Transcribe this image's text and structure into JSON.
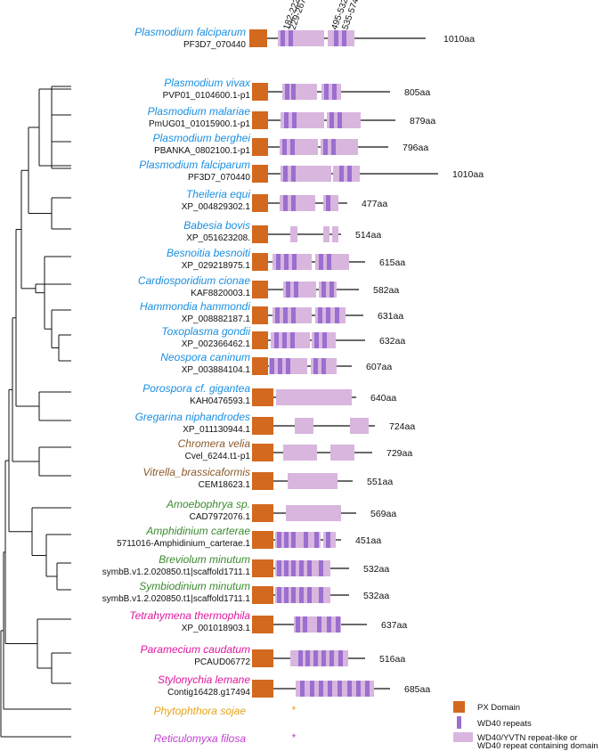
{
  "figure": {
    "reference": {
      "species": "Plasmodium falciparum",
      "accession": "PF3D7_070440",
      "length": "1010aa",
      "color": "#1a8fe0",
      "range_labels": [
        "182-222",
        "229-267",
        "495-532",
        "535-574"
      ]
    },
    "proteins": [
      {
        "species": "Plasmodium vivax",
        "accession": "PVP01_0104600.1-p1",
        "length": "805aa",
        "group": "apicomplexa",
        "aa": 805
      },
      {
        "species": "Plasmodium malariae",
        "accession": "PmUG01_01015900.1-p1",
        "length": "879aa",
        "group": "apicomplexa",
        "aa": 879
      },
      {
        "species": "Plasmodium berghei",
        "accession": "PBANKA_0802100.1-p1",
        "length": "796aa",
        "group": "apicomplexa",
        "aa": 796
      },
      {
        "species": "Plasmodium falciparum",
        "accession": "PF3D7_070440",
        "length": "1010aa",
        "group": "apicomplexa",
        "aa": 1010
      },
      {
        "species": "Theileria equi",
        "accession": "XP_004829302.1",
        "length": "477aa",
        "group": "apicomplexa",
        "aa": 477
      },
      {
        "species": "Babesia bovis",
        "accession": "XP_051623208.",
        "length": "514aa",
        "group": "apicomplexa",
        "aa": 514
      },
      {
        "species": "Besnoitia besnoiti",
        "accession": "XP_029218975.1",
        "length": "615aa",
        "group": "apicomplexa",
        "aa": 615
      },
      {
        "species": "Cardiosporidium cionae",
        "accession": "KAF8820003.1",
        "length": "582aa",
        "group": "apicomplexa",
        "aa": 582
      },
      {
        "species": "Hammondia hammondi",
        "accession": "XP_008882187.1",
        "length": "631aa",
        "group": "apicomplexa",
        "aa": 631
      },
      {
        "species": "Toxoplasma gondii",
        "accession": "XP_002366462.1",
        "length": "632aa",
        "group": "apicomplexa",
        "aa": 632
      },
      {
        "species": "Neospora caninum",
        "accession": "XP_003884104.1",
        "length": "607aa",
        "group": "apicomplexa",
        "aa": 607
      },
      {
        "species": "Porospora cf. gigantea",
        "accession": "KAH0476593.1",
        "length": "640aa",
        "group": "apicomplexa",
        "aa": 640
      },
      {
        "species": "Gregarina niphandrodes",
        "accession": "XP_011130944.1",
        "length": "724aa",
        "group": "apicomplexa",
        "aa": 724
      },
      {
        "species": "Chromera velia",
        "accession": "Cvel_6244.t1-p1",
        "length": "729aa",
        "group": "chromerid",
        "aa": 729
      },
      {
        "species": "Vitrella_brassicaformis",
        "accession": "CEM18623.1",
        "length": "551aa",
        "group": "chromerid",
        "aa": 551
      },
      {
        "species": "Amoebophrya sp.",
        "accession": "CAD7972076.1",
        "length": "569aa",
        "group": "dinoflagellate",
        "aa": 569
      },
      {
        "species": "Amphidinium carterae",
        "accession": "5711016-Amphidinium_carterae.1",
        "length": "451aa",
        "group": "dinoflagellate",
        "aa": 451
      },
      {
        "species": "Breviolum minutum",
        "accession": "symbB.v1.2.020850.t1|scaffold1711.1",
        "length": "532aa",
        "group": "dinoflagellate",
        "aa": 532
      },
      {
        "species": "Symbiodinium minutum",
        "accession": "symbB.v1.2.020850.t1|scaffold1711.1",
        "length": "532aa",
        "group": "dinoflagellate",
        "aa": 532
      },
      {
        "species": "Tetrahymena thermophila",
        "accession": "XP_001018903.1",
        "length": "637aa",
        "group": "ciliate",
        "aa": 637
      },
      {
        "species": "Paramecium caudatum",
        "accession": "PCAUD06772",
        "length": "516aa",
        "group": "ciliate",
        "aa": 516
      },
      {
        "species": "Stylonychia lemane",
        "accession": "Contig16428.g17494",
        "length": "685aa",
        "group": "ciliate",
        "aa": 685
      },
      {
        "species": "Phytophthora sojae",
        "accession": "",
        "length": "",
        "group": "oomycete",
        "aa": 0,
        "marker": "*"
      },
      {
        "species": "Reticulomyxa filosa",
        "accession": "",
        "length": "",
        "group": "rhizaria",
        "aa": 0,
        "marker": "*"
      }
    ],
    "group_colors": {
      "apicomplexa": "#1a8fe0",
      "chromerid": "#8a5a2b",
      "dinoflagellate": "#3a8a2e",
      "ciliate": "#e0189c",
      "oomycete": "#e8a317",
      "rhizaria": "#c040d0"
    },
    "domain_colors": {
      "px": "#d2691e",
      "wd40": "#9a6fd0",
      "wd40_like": "#d8b6de"
    },
    "legend": {
      "px": "PX Domain",
      "wd40": "WD40 repeats",
      "wd40_like_line1": "WD40/YVTN repeat-like or",
      "wd40_like_line2": "WD40 repeat containing domain"
    }
  }
}
